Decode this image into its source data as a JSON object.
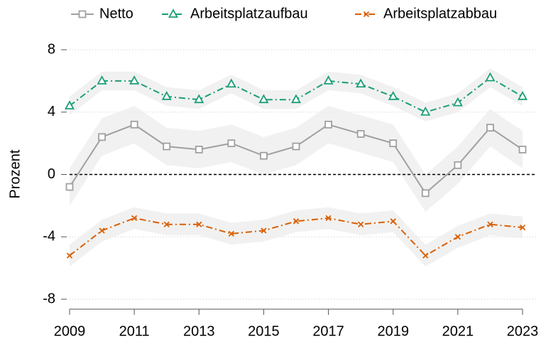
{
  "chart_data": {
    "type": "line",
    "ylabel": "Prozent",
    "x": [
      2009,
      2010,
      2011,
      2012,
      2013,
      2014,
      2015,
      2016,
      2017,
      2018,
      2019,
      2020,
      2021,
      2022,
      2023
    ],
    "xlim": [
      2009,
      2023
    ],
    "xticks": [
      2009,
      2011,
      2013,
      2015,
      2017,
      2019,
      2021,
      2023
    ],
    "ylim": [
      -8,
      8
    ],
    "yticks": [
      -8,
      -4,
      0,
      4,
      8
    ],
    "grid": true,
    "reference_line": 0,
    "legend": "top",
    "series": [
      {
        "name": "Netto",
        "color": "#a0a0a0",
        "marker": "square",
        "dash": "solid",
        "values": [
          -0.8,
          2.4,
          3.2,
          1.8,
          1.6,
          2.0,
          1.2,
          1.8,
          3.2,
          2.6,
          2.0,
          -1.2,
          0.6,
          3.0,
          1.6
        ],
        "lower": [
          -2.0,
          1.2,
          2.0,
          0.6,
          0.4,
          0.8,
          0.0,
          0.6,
          2.0,
          1.4,
          0.8,
          -2.4,
          -0.6,
          1.8,
          0.4
        ],
        "upper": [
          0.4,
          3.6,
          4.4,
          3.0,
          2.8,
          3.2,
          2.4,
          3.0,
          4.4,
          3.8,
          3.2,
          0.0,
          1.8,
          4.2,
          2.8
        ]
      },
      {
        "name": "Arbeitsplatzaufbau",
        "color": "#1b9e77",
        "marker": "triangle",
        "dash": "dashdot",
        "values": [
          4.4,
          6.0,
          6.0,
          5.0,
          4.8,
          5.8,
          4.8,
          4.8,
          6.0,
          5.8,
          5.0,
          4.0,
          4.6,
          6.2,
          5.0
        ],
        "lower": [
          3.8,
          5.4,
          5.4,
          4.4,
          4.2,
          5.2,
          4.2,
          4.2,
          5.4,
          5.2,
          4.4,
          3.4,
          4.0,
          5.6,
          4.4
        ],
        "upper": [
          5.0,
          6.6,
          6.6,
          5.6,
          5.4,
          6.4,
          5.4,
          5.4,
          6.6,
          6.4,
          5.6,
          4.6,
          5.2,
          6.8,
          5.6
        ]
      },
      {
        "name": "Arbeitsplatzabbau",
        "color": "#d95f02",
        "marker": "x",
        "dash": "dashdot",
        "values": [
          -5.2,
          -3.6,
          -2.8,
          -3.2,
          -3.2,
          -3.8,
          -3.6,
          -3.0,
          -2.8,
          -3.2,
          -3.0,
          -5.2,
          -4.0,
          -3.2,
          -3.4
        ],
        "lower": [
          -5.9,
          -4.3,
          -3.5,
          -3.9,
          -3.9,
          -4.5,
          -4.3,
          -3.7,
          -3.5,
          -3.9,
          -3.7,
          -5.9,
          -4.7,
          -3.9,
          -4.1
        ],
        "upper": [
          -4.5,
          -2.9,
          -2.1,
          -2.5,
          -2.5,
          -3.1,
          -2.9,
          -2.3,
          -2.1,
          -2.5,
          -2.3,
          -4.5,
          -3.3,
          -2.5,
          -2.7
        ]
      }
    ]
  }
}
